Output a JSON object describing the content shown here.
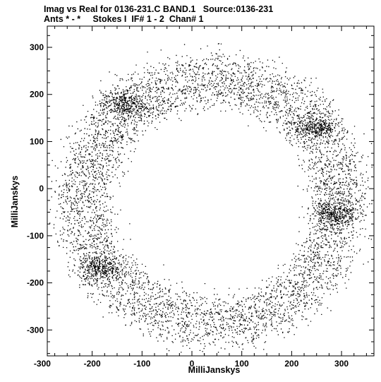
{
  "chart_data": {
    "type": "scatter",
    "title": "Imag vs Real for 0136-231.C BAND.1   Source:0136-231",
    "subtitle": "Ants * - *     Stokes I  IF# 1 - 2  Chan# 1",
    "xlabel": "MilliJanskys",
    "ylabel": "MilliJanskys",
    "xlim": [
      -290,
      365
    ],
    "ylim": [
      -355,
      345
    ],
    "xticks": [
      -300,
      -200,
      -100,
      0,
      100,
      200,
      300
    ],
    "yticks": [
      -300,
      -200,
      -100,
      0,
      100,
      200,
      300
    ],
    "xtick_labels": [
      "-300",
      "-200",
      "-100",
      "0",
      "100",
      "200",
      "300"
    ],
    "ytick_labels": [
      "-300",
      "-200",
      "-100",
      "0",
      "100",
      "200",
      "300"
    ],
    "grid": false,
    "legend": "none",
    "point_color": "#000000",
    "distribution": {
      "shape": "annulus",
      "center": [
        40,
        -25
      ],
      "inner_ring_radius": 235,
      "outer_ring_radius": 282,
      "ring_spread": 20,
      "num_points": 9000,
      "dense_clusters": [
        {
          "x": -140,
          "y": 180
        },
        {
          "x": 285,
          "y": -50
        },
        {
          "x": -185,
          "y": -170
        },
        {
          "x": 250,
          "y": 130
        }
      ]
    }
  }
}
